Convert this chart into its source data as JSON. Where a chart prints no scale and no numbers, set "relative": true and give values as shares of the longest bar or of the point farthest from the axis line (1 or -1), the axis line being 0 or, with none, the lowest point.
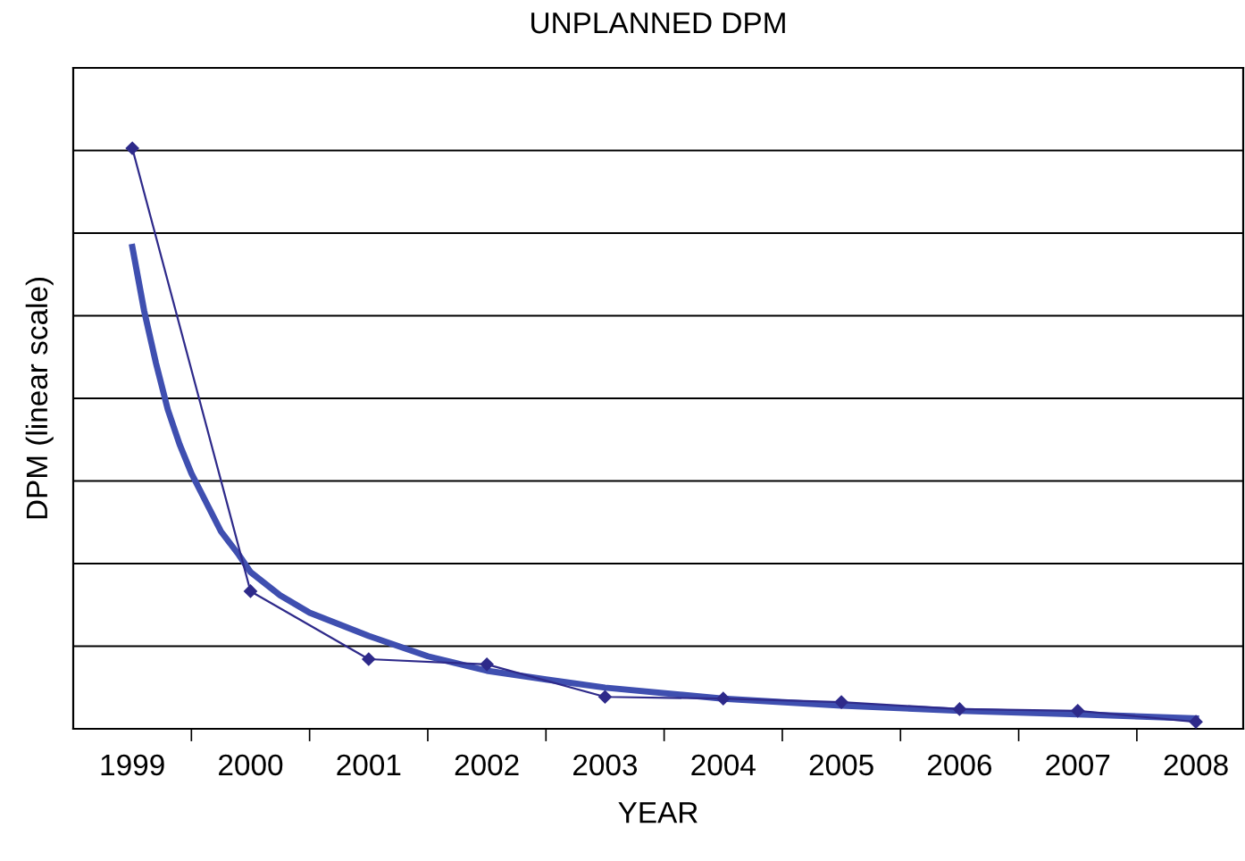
{
  "chart_data": {
    "type": "line",
    "title": "UNPLANNED DPM",
    "xlabel": "YEAR",
    "ylabel": "DPM (linear scale)",
    "relative": true,
    "grid": "y",
    "legend": false,
    "xlim": [
      1998.5,
      2008.4
    ],
    "xticks": [
      1999,
      2000,
      2001,
      2002,
      2003,
      2004,
      2005,
      2006,
      2007,
      2008,
      {
        "value": 1999.5,
        "label": null
      },
      {
        "value": 2000.5,
        "label": null
      },
      {
        "value": 2001.5,
        "label": null
      },
      {
        "value": 2002.5,
        "label": null
      },
      {
        "value": 2003.5,
        "label": null
      },
      {
        "value": 2004.5,
        "label": null
      },
      {
        "value": 2005.5,
        "label": null
      },
      {
        "value": 2006.5,
        "label": null
      },
      {
        "value": 2007.5,
        "label": null
      }
    ],
    "series": [
      {
        "color": "#2e2a8a",
        "marker": "diamond",
        "line_style": "solid",
        "x": [
          1999,
          2000,
          2001,
          2002,
          2003,
          2004,
          2005,
          2006,
          2007,
          2008
        ],
        "values": [
          1.0,
          0.237,
          0.12,
          0.111,
          0.055,
          0.052,
          0.046,
          0.034,
          0.031,
          0.012
        ]
      },
      {
        "color": "#3f4fb0",
        "marker": "none",
        "line_style": "solid",
        "x": [
          1999,
          1999.1,
          1999.2,
          1999.3,
          1999.4,
          1999.5,
          1999.6,
          1999.75,
          1999.9,
          2000,
          2000.25,
          2000.5,
          2000.75,
          2001,
          2001.5,
          2002,
          2002.5,
          2003,
          2004,
          2005,
          2006,
          2007,
          2008
        ],
        "values": [
          0.83,
          0.72,
          0.63,
          0.55,
          0.49,
          0.44,
          0.4,
          0.34,
          0.3,
          0.27,
          0.23,
          0.2,
          0.18,
          0.16,
          0.125,
          0.1,
          0.085,
          0.071,
          0.052,
          0.04,
          0.031,
          0.025,
          0.018
        ]
      }
    ]
  }
}
